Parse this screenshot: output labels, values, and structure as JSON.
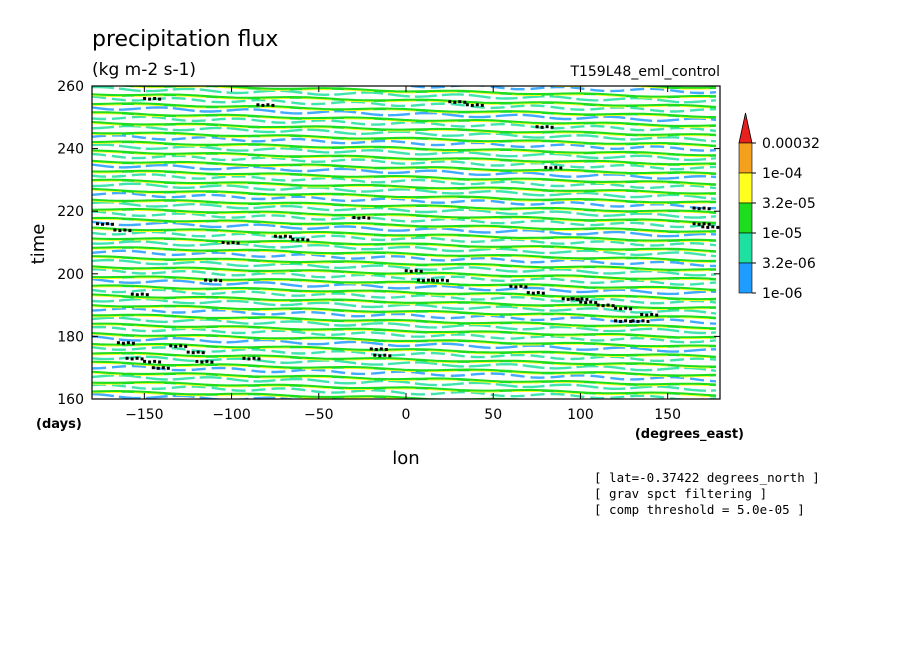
{
  "chart_data": {
    "type": "heatmap",
    "title": "precipitation flux",
    "units": "(kg m-2 s-1)",
    "run_label": "T159L48_eml_control",
    "xlabel": "lon",
    "ylabel": "time",
    "x_unit": "(degrees_east)",
    "y_unit": "(days)",
    "xlim": [
      -180,
      180
    ],
    "ylim": [
      160,
      260
    ],
    "x_ticks": [
      -150,
      -100,
      -50,
      0,
      50,
      100,
      150
    ],
    "y_ticks": [
      160,
      180,
      200,
      220,
      240,
      260
    ],
    "grid": false,
    "legend_position": "right",
    "levels": [
      "0.00032",
      "1e-04",
      "3.2e-05",
      "1e-05",
      "3.2e-06",
      "1e-06"
    ],
    "level_colors": [
      "#e8201e",
      "#f5a01c",
      "#ffff20",
      "#1edc1e",
      "#1ee0a0",
      "#1e9cff"
    ],
    "notes": [
      "[ lat=-0.37422 degrees_north ]",
      "[ grav spct filtering ]",
      "[ comp threshold = 5.0e-05 ]"
    ],
    "threshold_points": [
      [
        -172,
        216
      ],
      [
        -162,
        214
      ],
      [
        -152,
        193.5
      ],
      [
        -145,
        256
      ],
      [
        -160,
        178
      ],
      [
        -155,
        173
      ],
      [
        -145,
        172
      ],
      [
        -140,
        170
      ],
      [
        -130,
        177
      ],
      [
        -120,
        175
      ],
      [
        -115,
        172
      ],
      [
        -110,
        198
      ],
      [
        -100,
        210
      ],
      [
        -88,
        173
      ],
      [
        -80,
        254
      ],
      [
        -70,
        212
      ],
      [
        -60,
        211
      ],
      [
        -25,
        218
      ],
      [
        -15,
        176
      ],
      [
        -13,
        174
      ],
      [
        5,
        201
      ],
      [
        12,
        198
      ],
      [
        20,
        198
      ],
      [
        30,
        255
      ],
      [
        40,
        254
      ],
      [
        65,
        196
      ],
      [
        75,
        194
      ],
      [
        80,
        247
      ],
      [
        85,
        234
      ],
      [
        95,
        192
      ],
      [
        100,
        192
      ],
      [
        105,
        191
      ],
      [
        115,
        190
      ],
      [
        125,
        189
      ],
      [
        125,
        185
      ],
      [
        135,
        185
      ],
      [
        140,
        187
      ],
      [
        170,
        216
      ],
      [
        175,
        215
      ],
      [
        170,
        221
      ]
    ]
  }
}
